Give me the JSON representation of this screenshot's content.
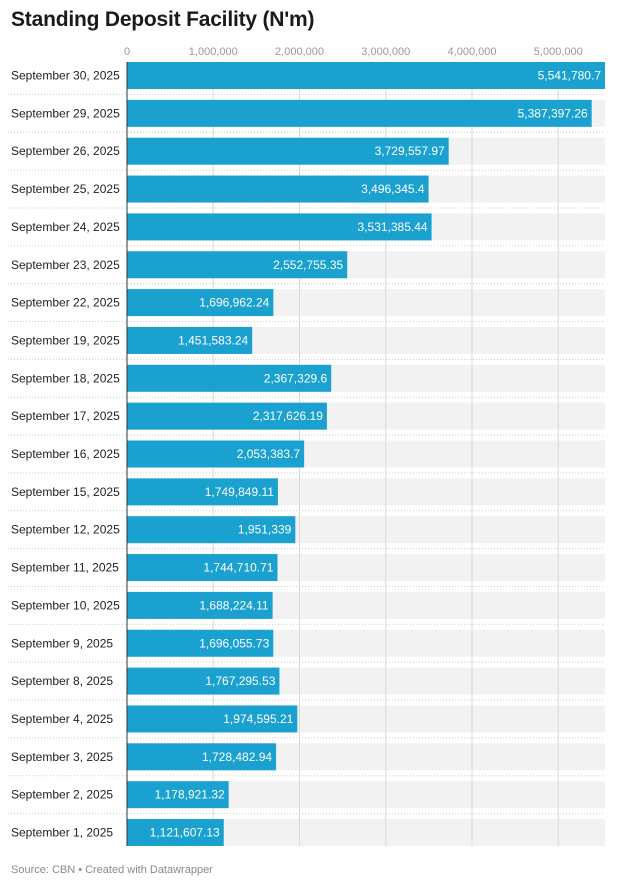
{
  "header": {
    "title": "Standing Deposit Facility (N'm)"
  },
  "footer": {
    "source": "Source: CBN",
    "separator": "•",
    "credit": "Created with Datawrapper"
  },
  "colors": {
    "bar": "#1aa1cf",
    "track": "#f2f2f2",
    "grid": "#d9d9d9",
    "bar_label": "#ffffff",
    "category_label": "#222222",
    "tick_label": "#999999",
    "row_separator": "#cccccc"
  },
  "chart_data": {
    "type": "bar",
    "orientation": "horizontal",
    "title": "Standing Deposit Facility (N'm)",
    "xlim": [
      0,
      5541780.7
    ],
    "ticks": [
      0,
      1000000,
      2000000,
      3000000,
      4000000,
      5000000
    ],
    "tick_labels": [
      "0",
      "1,000,000",
      "2,000,000",
      "3,000,000",
      "4,000,000",
      "5,000,000"
    ],
    "grid": true,
    "categories": [
      "September 30, 2025",
      "September 29, 2025",
      "September 26, 2025",
      "September 25, 2025",
      "September 24, 2025",
      "September 23, 2025",
      "September 22, 2025",
      "September 19, 2025",
      "September 18, 2025",
      "September 17, 2025",
      "September 16, 2025",
      "September 15, 2025",
      "September 12, 2025",
      "September 11, 2025",
      "September 10, 2025",
      "September 9, 2025",
      "September 8, 2025",
      "September 4, 2025",
      "September 3, 2025",
      "September 2, 2025",
      "September 1, 2025"
    ],
    "values": [
      5541780.7,
      5387397.26,
      3729557.97,
      3496345.4,
      3531385.44,
      2552755.35,
      1696962.24,
      1451583.24,
      2367329.6,
      2317626.19,
      2053383.7,
      1749849.11,
      1951339,
      1744710.71,
      1688224.11,
      1696055.73,
      1767295.53,
      1974595.21,
      1728482.94,
      1178921.32,
      1121607.13
    ],
    "value_labels": [
      "5,541,780.7",
      "5,387,397.26",
      "3,729,557.97",
      "3,496,345.4",
      "3,531,385.44",
      "2,552,755.35",
      "1,696,962.24",
      "1,451,583.24",
      "2,367,329.6",
      "2,317,626.19",
      "2,053,383.7",
      "1,749,849.11",
      "1,951,339",
      "1,744,710.71",
      "1,688,224.11",
      "1,696,055.73",
      "1,767,295.53",
      "1,974,595.21",
      "1,728,482.94",
      "1,178,921.32",
      "1,121,607.13"
    ]
  }
}
